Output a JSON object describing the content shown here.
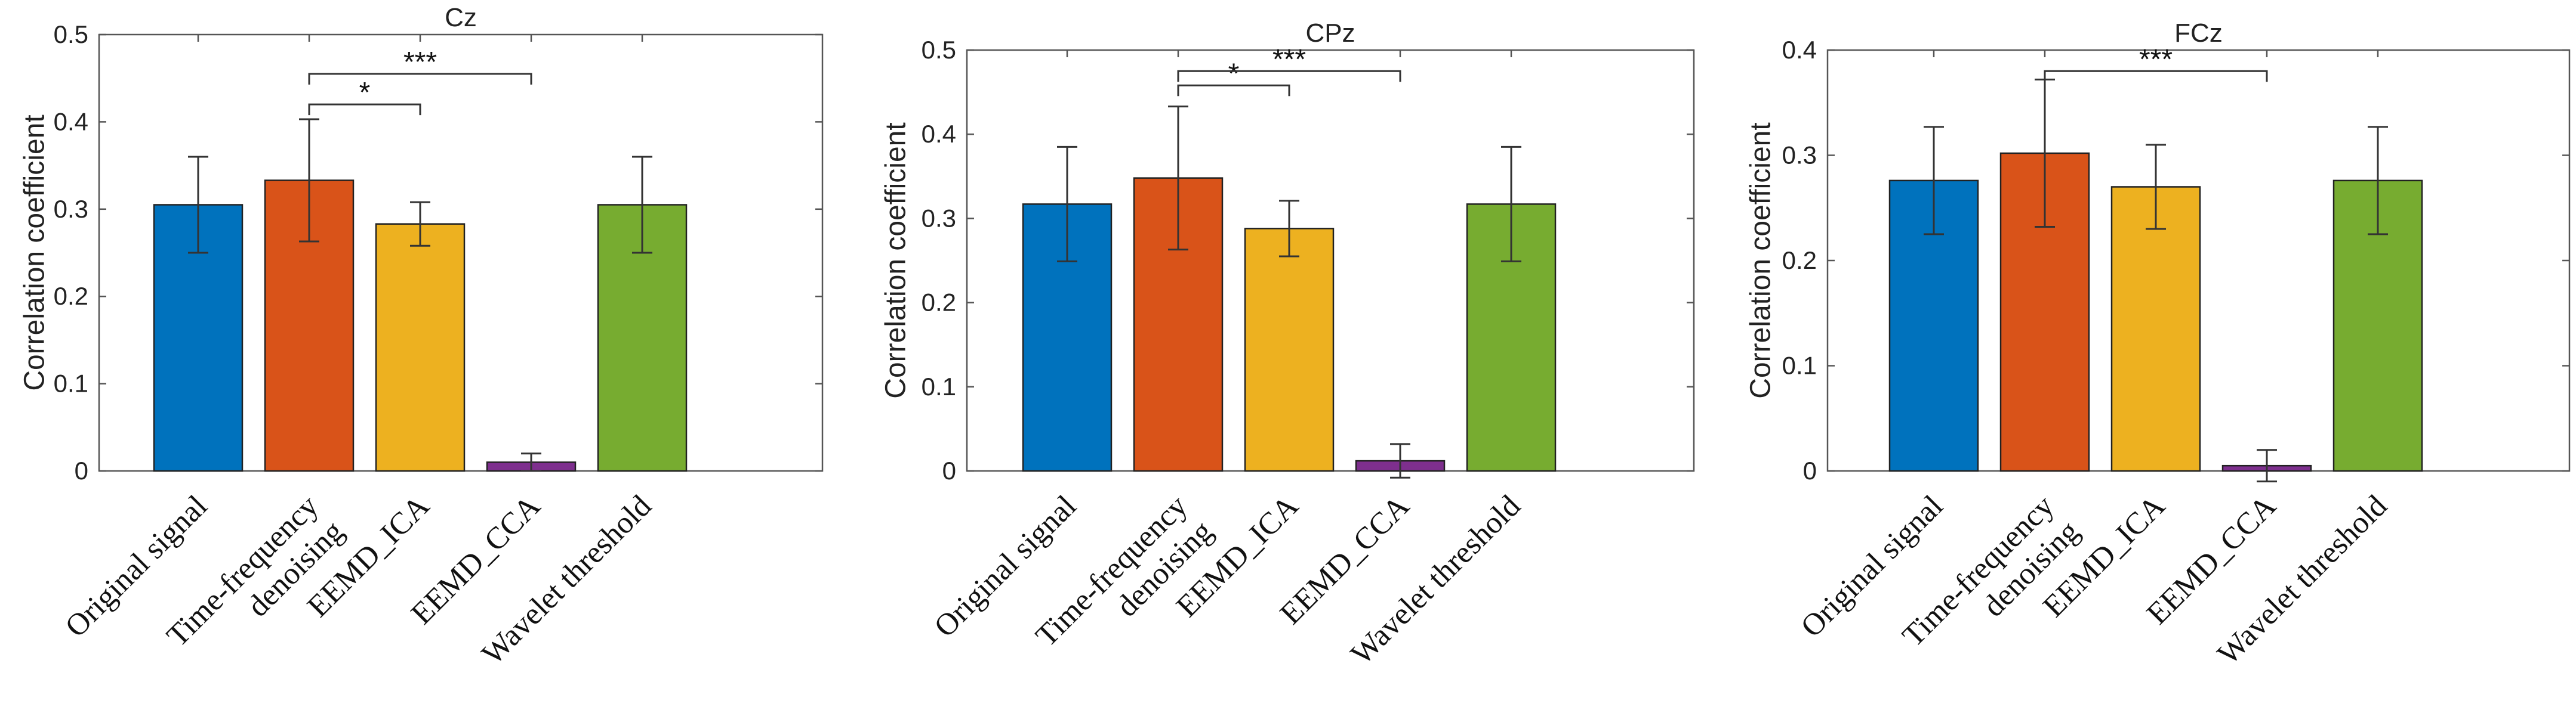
{
  "chart_data": [
    {
      "type": "bar",
      "title": "Cz",
      "ylabel": "Correlation coefficient",
      "ylim": [
        0,
        0.5
      ],
      "yticks": [
        "0",
        "0.1",
        "0.2",
        "0.3",
        "0.4",
        "0.5"
      ],
      "categories": [
        {
          "lines": [
            "Original signal"
          ]
        },
        {
          "lines": [
            "Time-frequency",
            "denoising"
          ]
        },
        {
          "lines": [
            "EEMD_ICA"
          ]
        },
        {
          "lines": [
            "EEMD_CCA"
          ]
        },
        {
          "lines": [
            "Wavelet threshold"
          ]
        }
      ],
      "values": [
        0.305,
        0.333,
        0.283,
        0.01,
        0.305
      ],
      "errors": [
        0.055,
        0.07,
        0.025,
        0.01,
        0.055
      ],
      "colors": [
        "#0072BD",
        "#D95319",
        "#EDB120",
        "#7E2F8E",
        "#77AC30"
      ],
      "significance": [
        {
          "from": 1,
          "to": 2,
          "label": "*",
          "level": 0.42
        },
        {
          "from": 1,
          "to": 3,
          "label": "***",
          "level": 0.455
        }
      ]
    },
    {
      "type": "bar",
      "title": "CPz",
      "ylabel": "Correlation coefficient",
      "ylim": [
        0,
        0.5
      ],
      "yticks": [
        "0",
        "0.1",
        "0.2",
        "0.3",
        "0.4",
        "0.5"
      ],
      "categories": [
        {
          "lines": [
            "Original signal"
          ]
        },
        {
          "lines": [
            "Time-frequency",
            "denoising"
          ]
        },
        {
          "lines": [
            "EEMD_ICA"
          ]
        },
        {
          "lines": [
            "EEMD_CCA"
          ]
        },
        {
          "lines": [
            "Wavelet threshold"
          ]
        }
      ],
      "values": [
        0.317,
        0.348,
        0.288,
        0.012,
        0.317
      ],
      "errors": [
        0.068,
        0.085,
        0.033,
        0.02,
        0.068
      ],
      "colors": [
        "#0072BD",
        "#D95319",
        "#EDB120",
        "#7E2F8E",
        "#77AC30"
      ],
      "significance": [
        {
          "from": 1,
          "to": 2,
          "label": "*",
          "level": 0.458
        },
        {
          "from": 1,
          "to": 3,
          "label": "***",
          "level": 0.475
        }
      ]
    },
    {
      "type": "bar",
      "title": "FCz",
      "ylabel": "Correlation coefficient",
      "ylim": [
        0,
        0.4
      ],
      "yticks": [
        "0",
        "0.1",
        "0.2",
        "0.3",
        "0.4"
      ],
      "categories": [
        {
          "lines": [
            "Original signal"
          ]
        },
        {
          "lines": [
            "Time-frequency",
            "denoising"
          ]
        },
        {
          "lines": [
            "EEMD_ICA"
          ]
        },
        {
          "lines": [
            "EEMD_CCA"
          ]
        },
        {
          "lines": [
            "Wavelet threshold"
          ]
        }
      ],
      "values": [
        0.276,
        0.302,
        0.27,
        0.005,
        0.276
      ],
      "errors": [
        0.051,
        0.07,
        0.04,
        0.015,
        0.051
      ],
      "colors": [
        "#0072BD",
        "#D95319",
        "#EDB120",
        "#7E2F8E",
        "#77AC30"
      ],
      "significance": [
        {
          "from": 1,
          "to": 3,
          "label": "***",
          "level": 0.38
        }
      ]
    }
  ]
}
